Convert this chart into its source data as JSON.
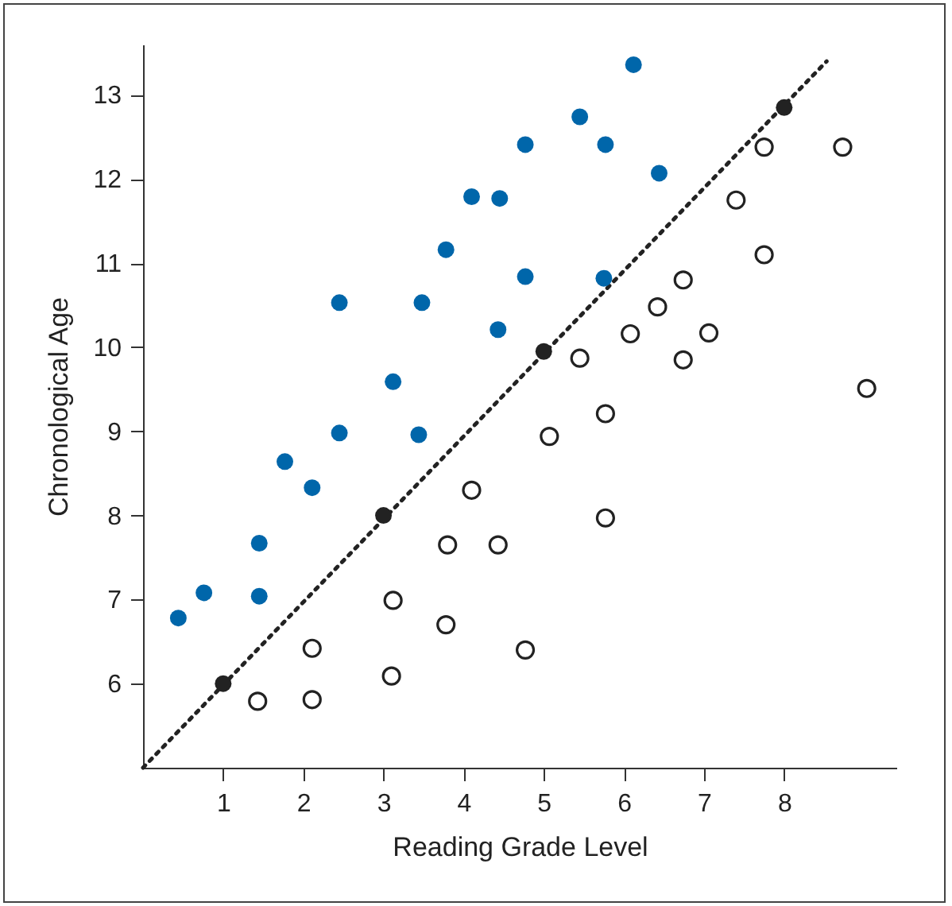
{
  "chart_data": {
    "type": "scatter",
    "xlabel": "Reading Grade Level",
    "ylabel": "Chronological Age",
    "xlim": [
      0,
      9.4
    ],
    "ylim": [
      5,
      13.6
    ],
    "xticks": [
      1,
      2,
      3,
      4,
      5,
      6,
      7,
      8
    ],
    "yticks": [
      6,
      7,
      8,
      9,
      10,
      11,
      12,
      13
    ],
    "grid": false,
    "series": [
      {
        "type": "line",
        "line_style": "dotted",
        "color": "#222222",
        "x": [
          0,
          8.53
        ],
        "values": [
          5.0,
          13.4
        ]
      },
      {
        "color": "#0066aa",
        "marker": "circle",
        "x": [
          0.44,
          0.76,
          1.45,
          1.45,
          1.77,
          2.11,
          2.45,
          2.45,
          3.12,
          3.44,
          3.48,
          3.78,
          4.1,
          4.45,
          4.43,
          4.77,
          4.77,
          5.45,
          5.77,
          5.75,
          6.44,
          6.12
        ],
        "values": [
          6.78,
          7.08,
          7.04,
          7.67,
          8.64,
          8.33,
          8.98,
          10.53,
          9.59,
          8.96,
          10.53,
          11.16,
          11.79,
          11.77,
          10.21,
          10.84,
          12.41,
          12.74,
          12.41,
          10.82,
          12.07,
          13.36
        ]
      },
      {
        "color": "#222222",
        "x": [
          1.43,
          2.11,
          2.11,
          3.1,
          3.12,
          3.78,
          3.8,
          4.43,
          4.1,
          4.77,
          5.07,
          5.45,
          5.77,
          5.77,
          6.08,
          6.42,
          6.74,
          6.74,
          7.06,
          7.4,
          7.75,
          7.75,
          8.73,
          9.03
        ],
        "values": [
          5.79,
          5.81,
          6.42,
          6.09,
          6.99,
          6.7,
          7.65,
          7.65,
          8.3,
          6.4,
          8.94,
          9.87,
          9.21,
          7.97,
          10.16,
          10.48,
          10.8,
          9.85,
          10.17,
          11.75,
          12.38,
          11.1,
          12.38,
          9.51
        ]
      },
      {
        "color": "#222222",
        "marker": "circle",
        "x": [
          1,
          3,
          5,
          8
        ],
        "values": [
          6.0,
          8.0,
          9.95,
          12.85
        ]
      }
    ]
  }
}
